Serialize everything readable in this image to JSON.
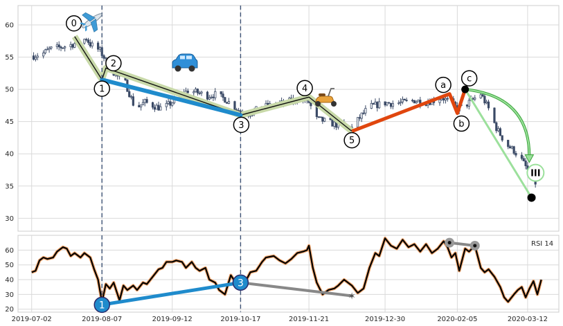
{
  "chart_data": {
    "type": "candlestick",
    "x_tick_labels": [
      "2019-07-02",
      "2019-08-07",
      "2019-09-12",
      "2019-10-17",
      "2019-11-21",
      "2019-12-30",
      "2020-02-05",
      "2020-03-12"
    ],
    "x_tick_dates": [
      "2019-07-02",
      "2019-08-07",
      "2019-09-12",
      "2019-10-17",
      "2019-11-21",
      "2019-12-30",
      "2020-02-05",
      "2020-03-12"
    ],
    "x_range": [
      "2019-06-25",
      "2020-03-28"
    ],
    "price": {
      "ylim": [
        28,
        63
      ],
      "yticks": [
        30,
        35,
        40,
        45,
        50,
        55,
        60
      ],
      "close": [
        [
          "2019-07-03",
          55.2
        ],
        [
          "2019-07-08",
          55.6
        ],
        [
          "2019-07-11",
          56.2
        ],
        [
          "2019-07-16",
          56.5
        ],
        [
          "2019-07-21",
          56.8
        ],
        [
          "2019-07-25",
          57.2
        ],
        [
          "2019-07-30",
          57.9
        ],
        [
          "2019-08-01",
          57.0
        ],
        [
          "2019-08-06",
          56.0
        ],
        [
          "2019-08-10",
          54.0
        ],
        [
          "2019-08-14",
          52.2
        ],
        [
          "2019-08-19",
          51.0
        ],
        [
          "2019-08-24",
          47.0
        ],
        [
          "2019-08-29",
          48.0
        ],
        [
          "2019-09-03",
          47.4
        ],
        [
          "2019-09-07",
          47.0
        ],
        [
          "2019-09-12",
          48.0
        ],
        [
          "2019-09-16",
          49.0
        ],
        [
          "2019-09-20",
          49.8
        ],
        [
          "2019-09-25",
          49.5
        ],
        [
          "2019-09-30",
          49.0
        ],
        [
          "2019-10-04",
          49.2
        ],
        [
          "2019-10-09",
          48.5
        ],
        [
          "2019-10-13",
          47.5
        ],
        [
          "2019-10-17",
          46.5
        ],
        [
          "2019-10-21",
          46.2
        ],
        [
          "2019-10-25",
          46.8
        ],
        [
          "2019-10-29",
          47.3
        ],
        [
          "2019-11-03",
          47.6
        ],
        [
          "2019-11-07",
          47.8
        ],
        [
          "2019-11-12",
          48.2
        ],
        [
          "2019-11-16",
          48.7
        ],
        [
          "2019-11-21",
          48.0
        ],
        [
          "2019-11-25",
          45.4
        ],
        [
          "2019-11-30",
          45.0
        ],
        [
          "2019-12-04",
          44.6
        ],
        [
          "2019-12-09",
          44.2
        ],
        [
          "2019-12-13",
          44.0
        ],
        [
          "2019-12-18",
          46.0
        ],
        [
          "2019-12-22",
          47.3
        ],
        [
          "2019-12-26",
          47.6
        ],
        [
          "2019-12-30",
          47.9
        ],
        [
          "2020-01-04",
          47.8
        ],
        [
          "2020-01-09",
          48.0
        ],
        [
          "2020-01-14",
          48.3
        ],
        [
          "2020-01-19",
          48.0
        ],
        [
          "2020-01-24",
          48.3
        ],
        [
          "2020-01-28",
          48.8
        ],
        [
          "2020-02-01",
          48.0
        ],
        [
          "2020-02-05",
          47.0
        ],
        [
          "2020-02-09",
          47.5
        ],
        [
          "2020-02-13",
          48.4
        ],
        [
          "2020-02-17",
          49.3
        ],
        [
          "2020-02-21",
          47.0
        ],
        [
          "2020-02-25",
          44.0
        ],
        [
          "2020-03-01",
          41.5
        ],
        [
          "2020-03-05",
          40.5
        ],
        [
          "2020-03-09",
          39.0
        ],
        [
          "2020-03-13",
          37.0
        ],
        [
          "2020-03-16",
          35.5
        ]
      ],
      "wave_points": [
        {
          "label": "0",
          "date": "2019-07-24",
          "value": 58.2
        },
        {
          "label": "1",
          "date": "2019-08-07",
          "value": 51.5
        },
        {
          "label": "2",
          "date": "2019-08-09",
          "value": 53.3
        },
        {
          "label": "3",
          "date": "2019-10-17",
          "value": 46.0
        },
        {
          "label": "4",
          "date": "2019-11-21",
          "value": 48.8
        },
        {
          "label": "5",
          "date": "2019-12-13",
          "value": 43.5
        },
        {
          "label": "a",
          "date": "2020-02-01",
          "value": 49.3
        },
        {
          "label": "b",
          "date": "2020-02-05",
          "value": 46.3
        },
        {
          "label": "c",
          "date": "2020-02-09",
          "value": 50.0
        }
      ],
      "projection": {
        "label": "III",
        "start_date": "2020-02-09",
        "start_value": 50.0,
        "target_date": "2020-03-15",
        "target_value": 37.7,
        "end_date": "2020-03-14",
        "end_value": 33.2
      },
      "icons": [
        "airplane-icon",
        "car-icon",
        "scooter-icon"
      ]
    },
    "rsi": {
      "legend": "RSI 14",
      "ylim": [
        18,
        70
      ],
      "yticks": [
        20,
        30,
        40,
        50,
        60
      ],
      "values": [
        [
          "2019-07-02",
          45
        ],
        [
          "2019-07-04",
          46
        ],
        [
          "2019-07-06",
          53
        ],
        [
          "2019-07-08",
          55
        ],
        [
          "2019-07-10",
          54
        ],
        [
          "2019-07-13",
          55
        ],
        [
          "2019-07-15",
          59
        ],
        [
          "2019-07-18",
          62
        ],
        [
          "2019-07-20",
          61
        ],
        [
          "2019-07-22",
          56
        ],
        [
          "2019-07-24",
          58
        ],
        [
          "2019-07-27",
          55
        ],
        [
          "2019-07-29",
          58
        ],
        [
          "2019-08-01",
          55
        ],
        [
          "2019-08-03",
          47
        ],
        [
          "2019-08-05",
          40
        ],
        [
          "2019-08-07",
          25
        ],
        [
          "2019-08-09",
          37
        ],
        [
          "2019-08-11",
          34
        ],
        [
          "2019-08-13",
          38
        ],
        [
          "2019-08-16",
          26
        ],
        [
          "2019-08-18",
          36
        ],
        [
          "2019-08-20",
          33
        ],
        [
          "2019-08-23",
          36
        ],
        [
          "2019-08-25",
          33
        ],
        [
          "2019-08-28",
          38
        ],
        [
          "2019-08-30",
          37
        ],
        [
          "2019-09-02",
          42
        ],
        [
          "2019-09-05",
          47
        ],
        [
          "2019-09-07",
          48
        ],
        [
          "2019-09-09",
          52
        ],
        [
          "2019-09-12",
          52
        ],
        [
          "2019-09-14",
          53
        ],
        [
          "2019-09-17",
          52
        ],
        [
          "2019-09-19",
          48
        ],
        [
          "2019-09-22",
          52
        ],
        [
          "2019-09-24",
          48
        ],
        [
          "2019-09-26",
          46
        ],
        [
          "2019-09-29",
          48
        ],
        [
          "2019-10-01",
          40
        ],
        [
          "2019-10-04",
          38
        ],
        [
          "2019-10-06",
          33
        ],
        [
          "2019-10-09",
          30
        ],
        [
          "2019-10-12",
          43
        ],
        [
          "2019-10-14",
          39
        ],
        [
          "2019-10-17",
          36
        ],
        [
          "2019-10-20",
          40
        ],
        [
          "2019-10-22",
          45
        ],
        [
          "2019-10-25",
          46
        ],
        [
          "2019-10-28",
          52
        ],
        [
          "2019-10-30",
          55
        ],
        [
          "2019-11-03",
          56
        ],
        [
          "2019-11-06",
          53
        ],
        [
          "2019-11-09",
          51
        ],
        [
          "2019-11-12",
          54
        ],
        [
          "2019-11-15",
          58
        ],
        [
          "2019-11-18",
          59
        ],
        [
          "2019-11-20",
          60
        ],
        [
          "2019-11-21",
          63
        ],
        [
          "2019-11-23",
          48
        ],
        [
          "2019-11-25",
          38
        ],
        [
          "2019-11-28",
          30
        ],
        [
          "2019-12-01",
          33
        ],
        [
          "2019-12-04",
          34
        ],
        [
          "2019-12-06",
          36
        ],
        [
          "2019-12-09",
          40
        ],
        [
          "2019-12-13",
          36
        ],
        [
          "2019-12-16",
          31
        ],
        [
          "2019-12-19",
          34
        ],
        [
          "2019-12-22",
          48
        ],
        [
          "2019-12-25",
          58
        ],
        [
          "2019-12-27",
          56
        ],
        [
          "2019-12-30",
          68
        ],
        [
          "2020-01-02",
          63
        ],
        [
          "2020-01-05",
          61
        ],
        [
          "2020-01-08",
          67
        ],
        [
          "2020-01-11",
          62
        ],
        [
          "2020-01-14",
          64
        ],
        [
          "2020-01-17",
          59
        ],
        [
          "2020-01-20",
          64
        ],
        [
          "2020-01-23",
          58
        ],
        [
          "2020-01-26",
          61
        ],
        [
          "2020-01-29",
          66
        ],
        [
          "2020-01-31",
          62
        ],
        [
          "2020-02-02",
          55
        ],
        [
          "2020-02-04",
          58
        ],
        [
          "2020-02-06",
          46
        ],
        [
          "2020-02-09",
          61
        ],
        [
          "2020-02-11",
          59
        ],
        [
          "2020-02-14",
          63
        ],
        [
          "2020-02-17",
          48
        ],
        [
          "2020-02-19",
          45
        ],
        [
          "2020-02-21",
          47
        ],
        [
          "2020-02-24",
          42
        ],
        [
          "2020-02-27",
          35
        ],
        [
          "2020-02-29",
          28
        ],
        [
          "2020-03-02",
          25
        ],
        [
          "2020-03-05",
          30
        ],
        [
          "2020-03-07",
          33
        ],
        [
          "2020-03-09",
          35
        ],
        [
          "2020-03-11",
          28
        ],
        [
          "2020-03-13",
          34
        ],
        [
          "2020-03-15",
          39
        ],
        [
          "2020-03-17",
          30
        ],
        [
          "2020-03-19",
          40
        ]
      ],
      "divergence": [
        {
          "label": "1",
          "date": "2019-08-07",
          "value": 23
        },
        {
          "label": "3",
          "date": "2019-10-17",
          "value": 38
        }
      ],
      "gray_line": [
        [
          "2019-10-17",
          38
        ],
        [
          "2019-12-13",
          29
        ]
      ],
      "top_line": [
        [
          "2020-02-01",
          65
        ],
        [
          "2020-02-14",
          63
        ]
      ]
    },
    "vlines": [
      "2019-08-07",
      "2019-10-17"
    ]
  },
  "colors": {
    "candle": "#3b4a66",
    "grid": "#d9d9d9",
    "impulse_fill": "#c8d9a8",
    "blue": "#1f8bcc",
    "orange": "#e0460e",
    "green_light": "#9ce09c",
    "green": "#3aa53a",
    "gray": "#888888",
    "rsi_outer": "#f2a56b",
    "rsi_inner": "#000000"
  }
}
